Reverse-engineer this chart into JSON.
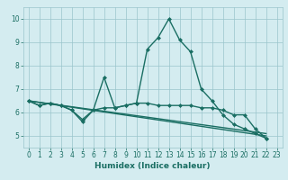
{
  "xlabel": "Humidex (Indice chaleur)",
  "bg_color": "#d4ecf0",
  "line_color": "#1a6e63",
  "grid_color": "#9ac4cc",
  "tick_color": "#1a6e63",
  "xlim": [
    -0.5,
    23.5
  ],
  "ylim": [
    4.5,
    10.5
  ],
  "yticks": [
    5,
    6,
    7,
    8,
    9,
    10
  ],
  "xticks": [
    0,
    1,
    2,
    3,
    4,
    5,
    6,
    7,
    8,
    9,
    10,
    11,
    12,
    13,
    14,
    15,
    16,
    17,
    18,
    19,
    20,
    21,
    22,
    23
  ],
  "series": [
    {
      "x": [
        0,
        1,
        2,
        3,
        4,
        5,
        6,
        7,
        8,
        9,
        10,
        11,
        12,
        13,
        14,
        15,
        16,
        17,
        18,
        19,
        20,
        21,
        22
      ],
      "y": [
        6.5,
        6.3,
        6.4,
        6.3,
        6.1,
        5.6,
        6.1,
        7.5,
        6.2,
        6.3,
        6.4,
        8.7,
        9.2,
        10.0,
        9.1,
        8.6,
        7.0,
        6.5,
        5.9,
        5.5,
        5.3,
        5.1,
        4.9
      ],
      "marker": true,
      "linewidth": 1.0
    },
    {
      "x": [
        0,
        1,
        2,
        3,
        4,
        5,
        6,
        7,
        8,
        9,
        10,
        11,
        12,
        13,
        14,
        15,
        16,
        17,
        18,
        19,
        20,
        21,
        22
      ],
      "y": [
        6.5,
        6.3,
        6.4,
        6.3,
        6.1,
        5.7,
        6.1,
        6.2,
        6.2,
        6.3,
        6.4,
        6.4,
        6.3,
        6.3,
        6.3,
        6.3,
        6.2,
        6.2,
        6.1,
        5.9,
        5.9,
        5.3,
        4.9
      ],
      "marker": true,
      "linewidth": 1.0
    },
    {
      "x": [
        0,
        22
      ],
      "y": [
        6.5,
        5.0
      ],
      "marker": false,
      "linewidth": 1.0
    },
    {
      "x": [
        0,
        22
      ],
      "y": [
        6.5,
        5.1
      ],
      "marker": false,
      "linewidth": 1.0
    }
  ],
  "tick_fontsize": 5.5,
  "xlabel_fontsize": 6.5
}
